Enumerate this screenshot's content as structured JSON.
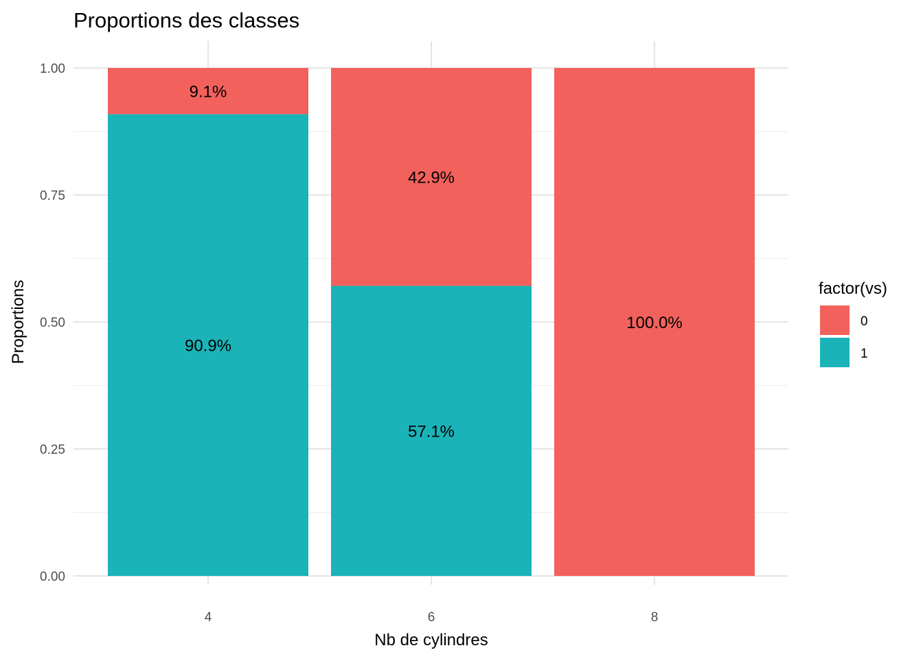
{
  "chart_data": {
    "type": "bar",
    "stacked": true,
    "title": "Proportions des classes",
    "xlabel": "Nb de cylindres",
    "ylabel": "Proportions",
    "categories": [
      "4",
      "6",
      "8"
    ],
    "ylim": [
      0,
      1
    ],
    "y_ticks": [
      "0.00",
      "0.25",
      "0.50",
      "0.75",
      "1.00"
    ],
    "y_tick_values": [
      0,
      0.25,
      0.5,
      0.75,
      1
    ],
    "series": [
      {
        "name": "0",
        "color": "#F2615C",
        "values": [
          0.091,
          0.429,
          1.0
        ],
        "labels": [
          "9.1%",
          "42.9%",
          "100.0%"
        ]
      },
      {
        "name": "1",
        "color": "#1AB3B8",
        "values": [
          0.909,
          0.571,
          0.0
        ],
        "labels": [
          "90.9%",
          "57.1%",
          ""
        ]
      }
    ],
    "legend": {
      "title": "factor(vs)",
      "position": "right"
    },
    "grid": true
  }
}
